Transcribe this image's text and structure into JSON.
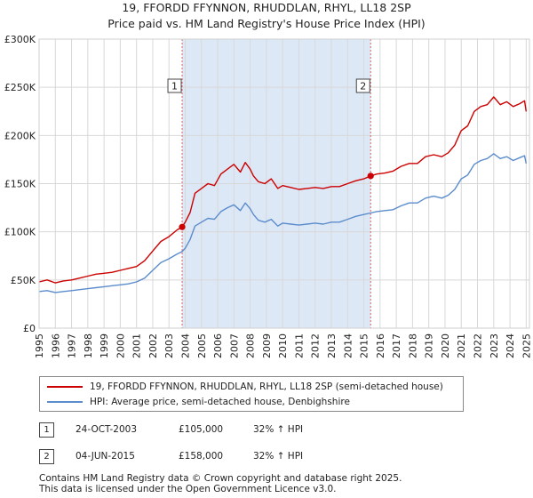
{
  "header": {
    "title_line1": "19, FFORDD FFYNNON, RHUDDLAN, RHYL, LL18 2SP",
    "title_line2": "Price paid vs. HM Land Registry's House Price Index (HPI)"
  },
  "colors": {
    "property": "#cc0000",
    "hpi": "#5b8ccc",
    "shade": "#dde8f7",
    "grid": "#d8d8d8",
    "vline": "#e06060"
  },
  "chart_data": {
    "type": "line",
    "title": "Price paid vs. HM Land Registry's House Price Index (HPI)",
    "xlabel": "",
    "ylabel": "",
    "xlim": [
      1995,
      2025.2
    ],
    "ylim": [
      0,
      300000
    ],
    "y_ticks": [
      0,
      50000,
      100000,
      150000,
      200000,
      250000,
      300000
    ],
    "y_tick_labels": [
      "£0",
      "£50K",
      "£100K",
      "£150K",
      "£200K",
      "£250K",
      "£300K"
    ],
    "x_ticks": [
      1995,
      1996,
      1997,
      1998,
      1999,
      2000,
      2001,
      2002,
      2003,
      2004,
      2005,
      2006,
      2007,
      2008,
      2009,
      2010,
      2011,
      2012,
      2013,
      2014,
      2015,
      2016,
      2017,
      2018,
      2019,
      2020,
      2021,
      2022,
      2023,
      2024,
      2025
    ],
    "grid": true,
    "legend_position": "below",
    "shaded_region": [
      2003.81,
      2015.42
    ],
    "series": [
      {
        "name": "19, FFORDD FFYNNON, RHUDDLAN, RHYL, LL18 2SP (semi-detached house)",
        "color": "#cc0000",
        "x": [
          1995.0,
          1995.5,
          1996.0,
          1996.5,
          1997.0,
          1997.5,
          1998.0,
          1998.5,
          1999.0,
          1999.5,
          2000.0,
          2000.5,
          2001.0,
          2001.5,
          2002.0,
          2002.5,
          2003.0,
          2003.5,
          2003.81,
          2004.0,
          2004.3,
          2004.6,
          2005.0,
          2005.4,
          2005.8,
          2006.2,
          2006.6,
          2007.0,
          2007.4,
          2007.7,
          2008.0,
          2008.2,
          2008.5,
          2008.9,
          2009.3,
          2009.7,
          2010.0,
          2010.5,
          2011.0,
          2011.5,
          2012.0,
          2012.5,
          2013.0,
          2013.5,
          2014.0,
          2014.5,
          2015.0,
          2015.42,
          2015.8,
          2016.3,
          2016.8,
          2017.3,
          2017.8,
          2018.3,
          2018.8,
          2019.3,
          2019.8,
          2020.2,
          2020.6,
          2021.0,
          2021.4,
          2021.8,
          2022.2,
          2022.6,
          2023.0,
          2023.4,
          2023.8,
          2024.2,
          2024.6,
          2024.9,
          2025.0
        ],
        "values": [
          48000,
          50000,
          47000,
          49000,
          50000,
          52000,
          54000,
          56000,
          57000,
          58000,
          60000,
          62000,
          64000,
          70000,
          80000,
          90000,
          95000,
          102000,
          105000,
          110000,
          120000,
          140000,
          145000,
          150000,
          148000,
          160000,
          165000,
          170000,
          162000,
          172000,
          165000,
          158000,
          152000,
          150000,
          155000,
          145000,
          148000,
          146000,
          144000,
          145000,
          146000,
          145000,
          147000,
          147000,
          150000,
          153000,
          155000,
          158000,
          160000,
          161000,
          163000,
          168000,
          171000,
          171000,
          178000,
          180000,
          178000,
          182000,
          190000,
          205000,
          210000,
          225000,
          230000,
          232000,
          240000,
          232000,
          235000,
          230000,
          233000,
          236000,
          225000
        ]
      },
      {
        "name": "HPI: Average price, semi-detached house, Denbighshire",
        "color": "#5b8ccc",
        "x": [
          1995.0,
          1995.5,
          1996.0,
          1996.5,
          1997.0,
          1997.5,
          1998.0,
          1998.5,
          1999.0,
          1999.5,
          2000.0,
          2000.5,
          2001.0,
          2001.5,
          2002.0,
          2002.5,
          2003.0,
          2003.5,
          2003.81,
          2004.0,
          2004.3,
          2004.6,
          2005.0,
          2005.4,
          2005.8,
          2006.2,
          2006.6,
          2007.0,
          2007.4,
          2007.7,
          2008.0,
          2008.2,
          2008.5,
          2008.9,
          2009.3,
          2009.7,
          2010.0,
          2010.5,
          2011.0,
          2011.5,
          2012.0,
          2012.5,
          2013.0,
          2013.5,
          2014.0,
          2014.5,
          2015.0,
          2015.42,
          2015.8,
          2016.3,
          2016.8,
          2017.3,
          2017.8,
          2018.3,
          2018.8,
          2019.3,
          2019.8,
          2020.2,
          2020.6,
          2021.0,
          2021.4,
          2021.8,
          2022.2,
          2022.6,
          2023.0,
          2023.4,
          2023.8,
          2024.2,
          2024.6,
          2024.9,
          2025.0
        ],
        "values": [
          38000,
          39000,
          37000,
          38000,
          39000,
          40000,
          41000,
          42000,
          43000,
          44000,
          45000,
          46000,
          48000,
          52000,
          60000,
          68000,
          72000,
          77000,
          79500,
          83000,
          92000,
          106000,
          110000,
          114000,
          113000,
          121000,
          125000,
          128000,
          122000,
          130000,
          124000,
          118000,
          112000,
          110000,
          113000,
          106000,
          109000,
          108000,
          107000,
          108000,
          109000,
          108000,
          110000,
          110000,
          113000,
          116000,
          118000,
          119500,
          121000,
          122000,
          123000,
          127000,
          130000,
          130000,
          135000,
          137000,
          135000,
          138000,
          144000,
          155000,
          159000,
          170000,
          174000,
          176000,
          181000,
          176000,
          178000,
          174000,
          177000,
          179000,
          171000
        ]
      }
    ],
    "markers": [
      {
        "label": "1",
        "x": 2003.81,
        "value": 105000
      },
      {
        "label": "2",
        "x": 2015.42,
        "value": 158000
      }
    ]
  },
  "legend": {
    "property_label": "19, FFORDD FFYNNON, RHUDDLAN, RHYL, LL18 2SP (semi-detached house)",
    "hpi_label": "HPI: Average price, semi-detached house, Denbighshire"
  },
  "transactions": [
    {
      "num": "1",
      "date": "24-OCT-2003",
      "price": "£105,000",
      "hpi": "32% ↑ HPI"
    },
    {
      "num": "2",
      "date": "04-JUN-2015",
      "price": "£158,000",
      "hpi": "32% ↑ HPI"
    }
  ],
  "footer": {
    "line1": "Contains HM Land Registry data © Crown copyright and database right 2025.",
    "line2": "This data is licensed under the Open Government Licence v3.0."
  }
}
